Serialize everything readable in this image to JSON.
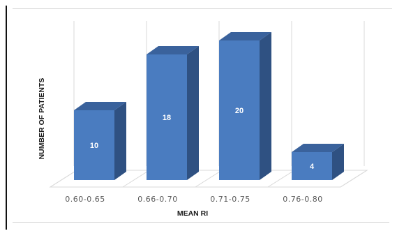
{
  "chart_data": {
    "type": "bar",
    "style": "3d-column",
    "categories": [
      "0.60-0.65",
      "0.66-0.70",
      "0.71-0.75",
      "0.76-0.80"
    ],
    "values": [
      10,
      18,
      20,
      4
    ],
    "title": "",
    "xlabel": "MEAN RI",
    "ylabel": "NUMBER OF PATIENTS",
    "ylim": [
      0,
      20
    ],
    "grid": true,
    "legend": "none",
    "data_labels": [
      "10",
      "18",
      "20",
      "4"
    ],
    "colors": {
      "bar_front": "#4a7cc0",
      "bar_side": "#2f5182",
      "bar_top": "#3a629c",
      "grid": "#d9d9d9",
      "tick_text": "#595959",
      "frame": "#111111"
    }
  }
}
